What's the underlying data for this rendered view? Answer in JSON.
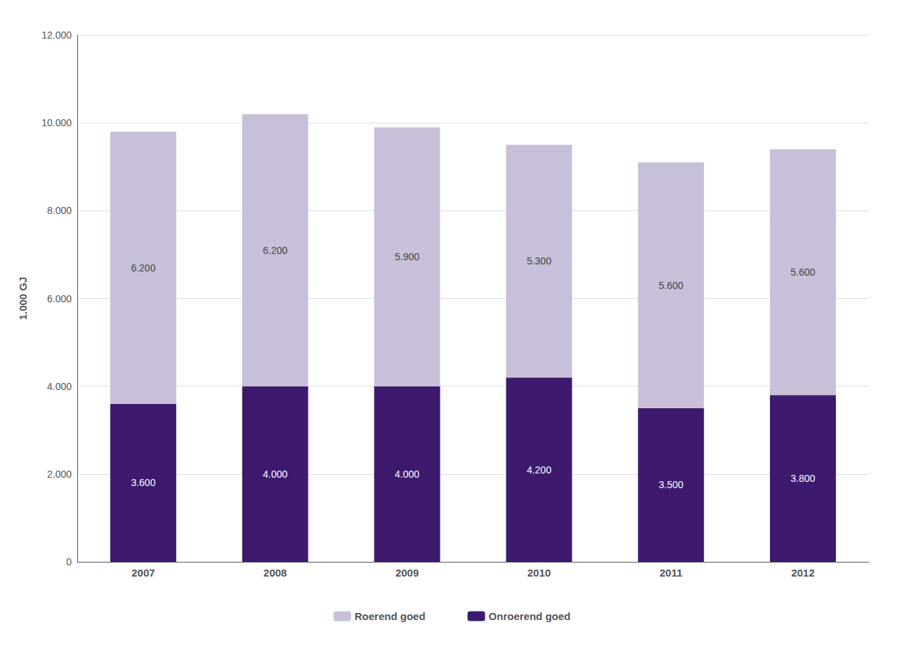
{
  "chart_data": {
    "type": "bar",
    "stacked": true,
    "ylabel": "1.000 GJ",
    "categories": [
      "2007",
      "2008",
      "2009",
      "2010",
      "2011",
      "2012"
    ],
    "series": [
      {
        "name": "Onroerend goed",
        "color": "#3d1a6e",
        "values": [
          3600,
          4000,
          4000,
          4200,
          3500,
          3800
        ],
        "value_labels": [
          "3.600",
          "4.000",
          "4.000",
          "4.200",
          "3.500",
          "3.800"
        ]
      },
      {
        "name": "Roerend goed",
        "color": "#c8bfd8",
        "values": [
          6200,
          6200,
          5900,
          5300,
          5600,
          5600
        ],
        "value_labels": [
          "6.200",
          "6.200",
          "5.900",
          "5.300",
          "5.600",
          "5.600"
        ]
      }
    ],
    "ylim": [
      0,
      12000
    ],
    "yticks": [
      0,
      {
        "value": 2000,
        "label": "2.000"
      },
      {
        "value": 4000,
        "label": "4.000"
      },
      {
        "value": 6000,
        "label": "6.000"
      },
      {
        "value": 8000,
        "label": "8.000"
      },
      {
        "value": 10000,
        "label": "10.000"
      },
      {
        "value": 12000,
        "label": "12.000"
      }
    ],
    "data_labels": true,
    "grid": true,
    "legend": "bottom"
  }
}
